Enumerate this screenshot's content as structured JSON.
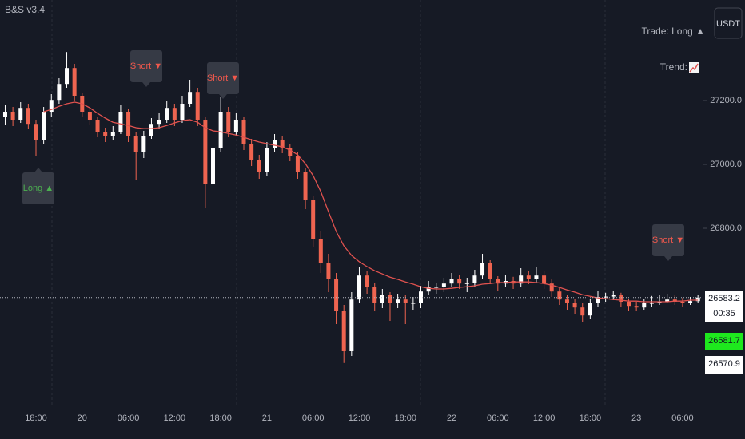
{
  "header": {
    "title": "B&S v3.4"
  },
  "toolbar": {
    "currency": "USDT"
  },
  "status": {
    "trade": "Trade: Long ▲",
    "trend": "Trend:"
  },
  "chart_data": {
    "type": "candlestick",
    "categories": [
      null,
      null,
      null,
      null,
      "18:00",
      null,
      null,
      null,
      null,
      null,
      "20",
      null,
      null,
      null,
      null,
      null,
      "06:00",
      null,
      null,
      null,
      null,
      null,
      "12:00",
      null,
      null,
      null,
      null,
      null,
      "18:00",
      null,
      null,
      null,
      null,
      null,
      "21",
      null,
      null,
      null,
      null,
      null,
      "06:00",
      null,
      null,
      null,
      null,
      null,
      "12:00",
      null,
      null,
      null,
      null,
      null,
      "18:00",
      null,
      null,
      null,
      null,
      null,
      "22",
      null,
      null,
      null,
      null,
      null,
      "06:00",
      null,
      null,
      null,
      null,
      null,
      "12:00",
      null,
      null,
      null,
      null,
      null,
      "18:00",
      null,
      null,
      null,
      null,
      null,
      "23",
      null,
      null,
      null,
      null,
      null,
      "06:00",
      null,
      null
    ],
    "series": [
      {
        "type": "candlestick",
        "up_color": "#ffffff",
        "down_color": "#ef6450",
        "values": [
          [
            27150,
            27185,
            27125,
            27165
          ],
          [
            27165,
            27180,
            27120,
            27140
          ],
          [
            27140,
            27195,
            27130,
            27177
          ],
          [
            27177,
            27190,
            27110,
            27127
          ],
          [
            27127,
            27140,
            27027,
            27077
          ],
          [
            27077,
            27180,
            27065,
            27165
          ],
          [
            27165,
            27220,
            27150,
            27202
          ],
          [
            27202,
            27270,
            27190,
            27252
          ],
          [
            27252,
            27352,
            27240,
            27302
          ],
          [
            27302,
            27315,
            27200,
            27215
          ],
          [
            27215,
            27225,
            27150,
            27165
          ],
          [
            27165,
            27175,
            27125,
            27140
          ],
          [
            27140,
            27150,
            27085,
            27102
          ],
          [
            27102,
            27115,
            27070,
            27090
          ],
          [
            27090,
            27120,
            27075,
            27102
          ],
          [
            27102,
            27185,
            27095,
            27165
          ],
          [
            27165,
            27175,
            27070,
            27090
          ],
          [
            27090,
            27100,
            26952,
            27040
          ],
          [
            27040,
            27105,
            27020,
            27090
          ],
          [
            27090,
            27145,
            27080,
            27127
          ],
          [
            27127,
            27160,
            27110,
            27140
          ],
          [
            27140,
            27200,
            27130,
            27177
          ],
          [
            27177,
            27190,
            27120,
            27140
          ],
          [
            27140,
            27215,
            27130,
            27190
          ],
          [
            27190,
            27265,
            27180,
            27227
          ],
          [
            27227,
            27240,
            27120,
            27140
          ],
          [
            27140,
            27150,
            26865,
            26940
          ],
          [
            26940,
            27070,
            26925,
            27052
          ],
          [
            27052,
            27210,
            27040,
            27165
          ],
          [
            27165,
            27180,
            27085,
            27102
          ],
          [
            27102,
            27160,
            27090,
            27140
          ],
          [
            27140,
            27150,
            27045,
            27065
          ],
          [
            27065,
            27080,
            26995,
            27015
          ],
          [
            27015,
            27030,
            26955,
            26977
          ],
          [
            26977,
            27070,
            26965,
            27052
          ],
          [
            27052,
            27095,
            27040,
            27077
          ],
          [
            27077,
            27090,
            27035,
            27052
          ],
          [
            27052,
            27065,
            27010,
            27027
          ],
          [
            27027,
            27040,
            26955,
            26977
          ],
          [
            26977,
            26990,
            26860,
            26890
          ],
          [
            26890,
            26900,
            26740,
            26765
          ],
          [
            26765,
            26790,
            26660,
            26690
          ],
          [
            26690,
            26720,
            26600,
            26640
          ],
          [
            26640,
            26660,
            26500,
            26540
          ],
          [
            26540,
            26560,
            26378,
            26415
          ],
          [
            26415,
            26600,
            26400,
            26577
          ],
          [
            26577,
            26680,
            26565,
            26652
          ],
          [
            26652,
            26665,
            26595,
            26615
          ],
          [
            26615,
            26630,
            26540,
            26565
          ],
          [
            26565,
            26610,
            26550,
            26590
          ],
          [
            26590,
            26600,
            26510,
            26565
          ],
          [
            26565,
            26595,
            26550,
            26577
          ],
          [
            26577,
            26590,
            26500,
            26565
          ],
          [
            26565,
            26585,
            26545,
            26566
          ],
          [
            26566,
            26620,
            26550,
            26602
          ],
          [
            26602,
            26635,
            26590,
            26615
          ],
          [
            26615,
            26630,
            26595,
            26616
          ],
          [
            26616,
            26645,
            26600,
            26627
          ],
          [
            26627,
            26660,
            26615,
            26640
          ],
          [
            26640,
            26655,
            26610,
            26627
          ],
          [
            26627,
            26645,
            26600,
            26628
          ],
          [
            26628,
            26670,
            26615,
            26652
          ],
          [
            26652,
            26720,
            26640,
            26690
          ],
          [
            26690,
            26700,
            26625,
            26640
          ],
          [
            26640,
            26650,
            26605,
            26627
          ],
          [
            26627,
            26655,
            26615,
            26635
          ],
          [
            26635,
            26648,
            26610,
            26627
          ],
          [
            26627,
            26675,
            26615,
            26652
          ],
          [
            26652,
            26665,
            26625,
            26640
          ],
          [
            26640,
            26680,
            26630,
            26652
          ],
          [
            26652,
            26665,
            26610,
            26627
          ],
          [
            26627,
            26640,
            26585,
            26602
          ],
          [
            26602,
            26615,
            26560,
            26577
          ],
          [
            26577,
            26590,
            26545,
            26565
          ],
          [
            26565,
            26580,
            26530,
            26552
          ],
          [
            26552,
            26565,
            26505,
            26527
          ],
          [
            26527,
            26580,
            26515,
            26565
          ],
          [
            26565,
            26605,
            26555,
            26585
          ],
          [
            26585,
            26598,
            26570,
            26586
          ],
          [
            26586,
            26605,
            26575,
            26590
          ],
          [
            26590,
            26598,
            26555,
            26570
          ],
          [
            26570,
            26580,
            26540,
            26557
          ],
          [
            26557,
            26570,
            26540,
            26552
          ],
          [
            26552,
            26578,
            26545,
            26565
          ],
          [
            26565,
            26588,
            26555,
            26566
          ],
          [
            26566,
            26590,
            26560,
            26570
          ],
          [
            26570,
            26595,
            26565,
            26577
          ],
          [
            26577,
            26590,
            26560,
            26570
          ],
          [
            26570,
            26582,
            26555,
            26565
          ],
          [
            26565,
            26585,
            26560,
            26572
          ],
          [
            26572,
            26590,
            26565,
            26583.2
          ]
        ]
      },
      {
        "type": "line",
        "color": "#e0524f",
        "values": [
          null,
          null,
          null,
          null,
          null,
          27165,
          27172,
          27182,
          27190,
          27195,
          27190,
          27177,
          27160,
          27145,
          27132,
          27127,
          27122,
          27115,
          27112,
          27112,
          27115,
          27122,
          27130,
          27137,
          27140,
          27132,
          27115,
          27105,
          27102,
          27097,
          27092,
          27085,
          27077,
          27070,
          27065,
          27060,
          27055,
          27045,
          27030,
          27002,
          26965,
          26915,
          26852,
          26790,
          26745,
          26715,
          26695,
          26680,
          26667,
          26657,
          26647,
          26640,
          26632,
          26625,
          26617,
          26612,
          26610,
          26610,
          26612,
          26615,
          26617,
          26620,
          26625,
          26627,
          26630,
          26630,
          26632,
          26632,
          26632,
          26630,
          26627,
          26622,
          26615,
          26607,
          26600,
          26592,
          26587,
          26582,
          26580,
          26577,
          26575,
          26572,
          26572,
          26570,
          26570,
          26570,
          26570,
          26572,
          26572,
          26575,
          26575
        ]
      }
    ],
    "ylim": [
      26240,
      27515
    ],
    "yticks": [
      {
        "value": 26800,
        "label": "26800.0"
      },
      {
        "value": 27000,
        "label": "27000.0"
      },
      {
        "value": 27200,
        "label": "27200.0"
      }
    ],
    "grid": false,
    "annotations": [
      {
        "text": "Long ▲",
        "color": "#4caf50"
      },
      {
        "text": "Short ▼",
        "color": "#f0584c"
      },
      {
        "text": "Short ▼",
        "color": "#f0584c"
      },
      {
        "text": "Short ▼",
        "color": "#f0584c"
      }
    ],
    "price_labels": [
      26583.2,
      26581.7,
      26570.9
    ],
    "countdown": "00:35"
  }
}
